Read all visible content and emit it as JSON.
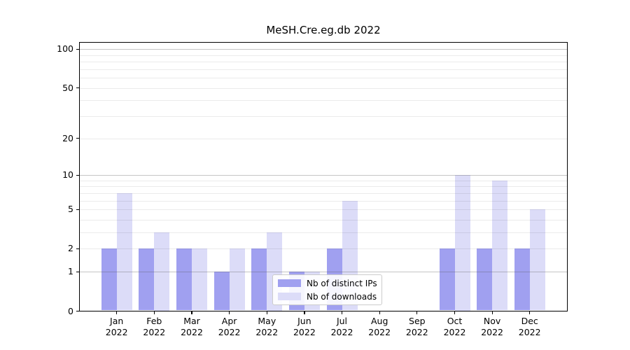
{
  "chart_data": {
    "type": "bar",
    "title": "MeSH.Cre.eg.db 2022",
    "months": [
      "Jan",
      "Feb",
      "Mar",
      "Apr",
      "May",
      "Jun",
      "Jul",
      "Aug",
      "Sep",
      "Oct",
      "Nov",
      "Dec"
    ],
    "year": "2022",
    "series": [
      {
        "name": "Nb of distinct IPs",
        "color": "#a0a0f0",
        "values": [
          2,
          2,
          2,
          1,
          2,
          1,
          2,
          0,
          0,
          2,
          2,
          2
        ]
      },
      {
        "name": "Nb of downloads",
        "color": "#dcdcf8",
        "values": [
          7,
          3,
          2,
          2,
          3,
          1,
          6,
          0,
          0,
          10,
          9,
          5
        ]
      }
    ],
    "y_axis": {
      "scale": "log1p",
      "tick_labels": [
        "0",
        "1",
        "2",
        "5",
        "10",
        "20",
        "50",
        "100"
      ],
      "tick_values": [
        0,
        1,
        2,
        5,
        10,
        20,
        50,
        100
      ],
      "range": [
        0,
        112
      ]
    },
    "grid": {
      "minor_values": [
        2,
        3,
        4,
        5,
        6,
        7,
        8,
        9,
        20,
        30,
        40,
        50,
        60,
        70,
        80,
        90
      ],
      "major_values": [
        1,
        10,
        100
      ],
      "minor_color": "rgba(0,0,0,0.08)",
      "major_color": "rgba(90,90,90,0.35)"
    },
    "legend": {
      "position": "lower center"
    }
  }
}
